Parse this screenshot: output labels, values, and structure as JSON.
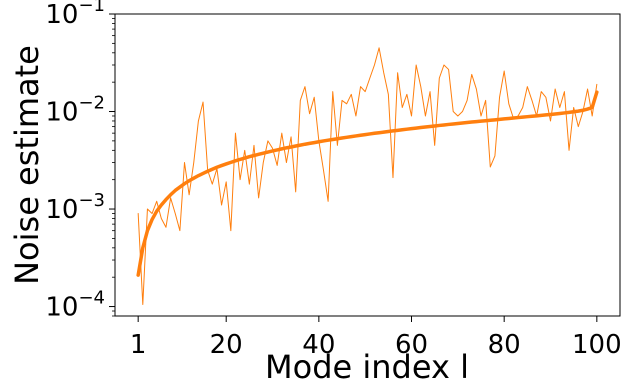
{
  "chart_data": {
    "type": "line",
    "title": "",
    "xlabel": "Mode index l",
    "ylabel": "Noise estimate",
    "xlim": [
      -4,
      105
    ],
    "ylim": [
      8e-05,
      0.1
    ],
    "yscale": "log",
    "grid": false,
    "x_ticks": [
      1,
      20,
      40,
      60,
      80,
      100
    ],
    "y_ticks": [
      {
        "value": 0.0001,
        "base": "10",
        "exp": "−4"
      },
      {
        "value": 0.001,
        "base": "10",
        "exp": "−3"
      },
      {
        "value": 0.01,
        "base": "10",
        "exp": "−2"
      },
      {
        "value": 0.1,
        "base": "10",
        "exp": "−1"
      }
    ],
    "colors": {
      "series": "#ff7f0e",
      "axes": "#000000"
    },
    "series": [
      {
        "role": "noisy",
        "values": [
          0.0009,
          0.000105,
          0.001,
          0.0009,
          0.0012,
          0.0008,
          0.00065,
          0.0013,
          0.0009,
          0.0006,
          0.003,
          0.0014,
          0.003,
          0.008,
          0.0125,
          0.0025,
          0.0018,
          0.0026,
          0.0011,
          0.0019,
          0.0006,
          0.006,
          0.002,
          0.004,
          0.0018,
          0.0045,
          0.0013,
          0.003,
          0.005,
          0.0042,
          0.0028,
          0.006,
          0.003,
          0.0055,
          0.0015,
          0.013,
          0.018,
          0.0095,
          0.014,
          0.005,
          0.0025,
          0.0012,
          0.016,
          0.0045,
          0.013,
          0.012,
          0.015,
          0.009,
          0.018,
          0.016,
          0.022,
          0.03,
          0.045,
          0.025,
          0.015,
          0.0021,
          0.025,
          0.011,
          0.015,
          0.009,
          0.03,
          0.018,
          0.009,
          0.016,
          0.0045,
          0.022,
          0.03,
          0.027,
          0.01,
          0.009,
          0.01,
          0.013,
          0.024,
          0.017,
          0.009,
          0.013,
          0.0027,
          0.0035,
          0.014,
          0.026,
          0.012,
          0.0085,
          0.009,
          0.011,
          0.018,
          0.013,
          0.009,
          0.016,
          0.014,
          0.008,
          0.017,
          0.011,
          0.016,
          0.004,
          0.011,
          0.007,
          0.01,
          0.017,
          0.009,
          0.019
        ]
      },
      {
        "role": "fit",
        "values": [
          0.00021,
          0.0004,
          0.0006,
          0.00078,
          0.00095,
          0.0011,
          0.00125,
          0.0014,
          0.00155,
          0.00168,
          0.00182,
          0.00195,
          0.00207,
          0.0022,
          0.00232,
          0.00244,
          0.00256,
          0.00268,
          0.00279,
          0.0029,
          0.00301,
          0.00312,
          0.00323,
          0.00333,
          0.00344,
          0.00354,
          0.00364,
          0.00374,
          0.00384,
          0.00394,
          0.00404,
          0.00414,
          0.00424,
          0.00433,
          0.00443,
          0.00452,
          0.00462,
          0.00471,
          0.0048,
          0.0049,
          0.00499,
          0.00508,
          0.00517,
          0.00526,
          0.00535,
          0.00544,
          0.00553,
          0.00562,
          0.00571,
          0.0058,
          0.00589,
          0.00598,
          0.00606,
          0.00615,
          0.00624,
          0.00633,
          0.00641,
          0.0065,
          0.00659,
          0.00668,
          0.00676,
          0.00685,
          0.00694,
          0.00702,
          0.00711,
          0.0072,
          0.00728,
          0.00737,
          0.00745,
          0.00754,
          0.00762,
          0.00771,
          0.0078,
          0.00788,
          0.00797,
          0.00805,
          0.00814,
          0.00822,
          0.00831,
          0.0084,
          0.00849,
          0.00858,
          0.00867,
          0.00876,
          0.00885,
          0.00894,
          0.00903,
          0.00913,
          0.00923,
          0.00933,
          0.00944,
          0.00955,
          0.00967,
          0.0098,
          0.00995,
          0.0101,
          0.0103,
          0.0106,
          0.011,
          0.0158
        ]
      }
    ]
  }
}
